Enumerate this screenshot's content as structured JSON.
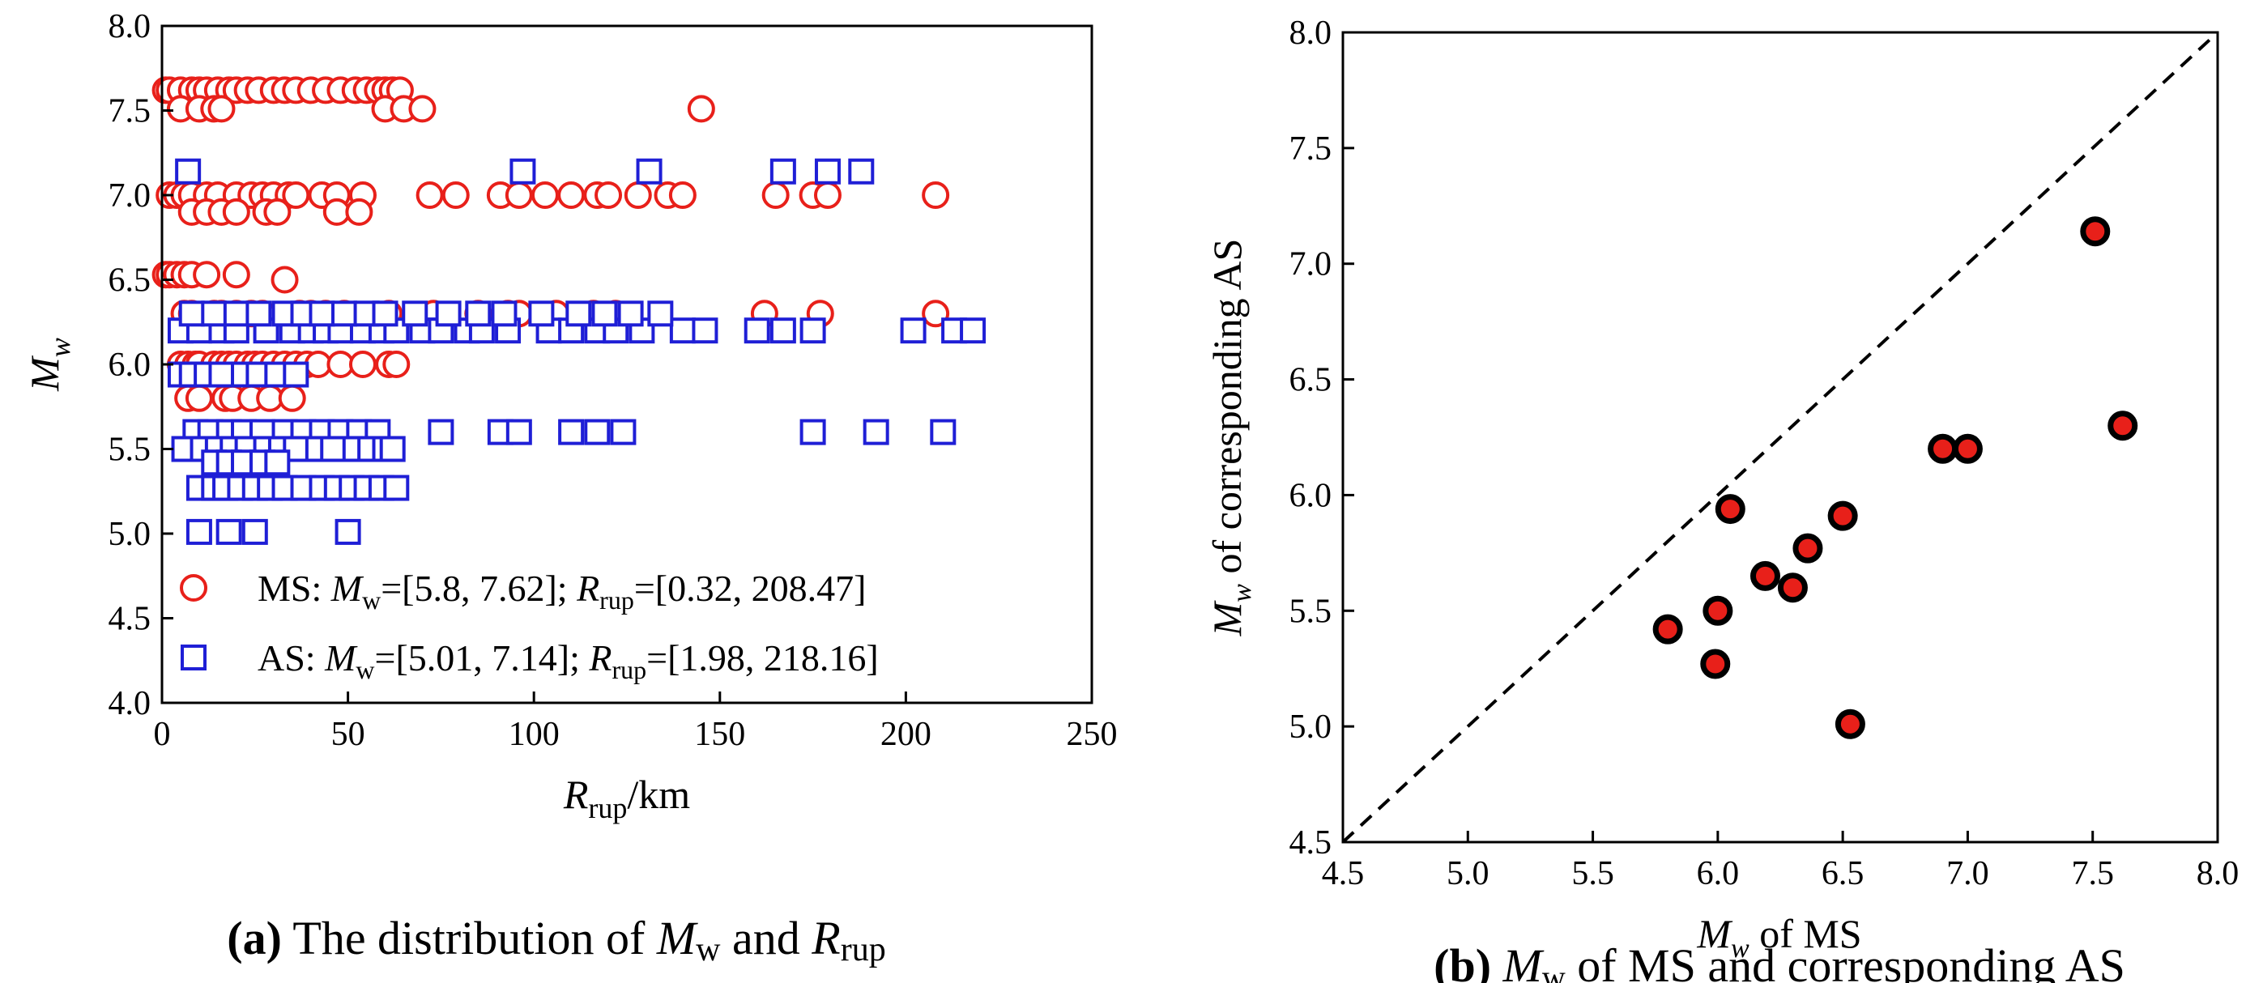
{
  "chart_data": [
    {
      "type": "scatter",
      "panel_id": "a",
      "xlim": [
        0,
        250
      ],
      "ylim": [
        4.0,
        8.0
      ],
      "xticks": [
        "0",
        "50",
        "100",
        "150",
        "200",
        "250"
      ],
      "yticks": [
        "4.0",
        "4.5",
        "5.0",
        "5.5",
        "6.0",
        "6.5",
        "7.0",
        "7.5",
        "8.0"
      ],
      "xlabel": {
        "main": "R",
        "sub": "rup",
        "rest": "/km"
      },
      "ylabel": {
        "main": "M",
        "sub": "w"
      },
      "caption": {
        "tag": "(a)",
        "text1": " The distribution of ",
        "m": "M",
        "msub": "w",
        "and": " and ",
        "r": "R",
        "rsub": "rup"
      },
      "legend": [
        {
          "prefix": "MS: ",
          "m": "M",
          "msub": "w",
          "mrange": "=[5.8, 7.62]; ",
          "r": "R",
          "rsub": "rup",
          "rrange": "=[0.32, 208.47]",
          "color": "#e8201a",
          "marker": "circle"
        },
        {
          "prefix": "AS:  ",
          "m": "M",
          "msub": "w",
          "mrange": "=[5.01, 7.14]; ",
          "r": "R",
          "rsub": "rup",
          "rrange": "=[1.98, 218.16]",
          "color": "#1f1fd6",
          "marker": "square"
        }
      ],
      "series": [
        {
          "name": "MS",
          "color": "#e8201a",
          "marker": "circle",
          "x": [
            1,
            2,
            5,
            8,
            10,
            12,
            15,
            18,
            20,
            23,
            26,
            30,
            33,
            36,
            40,
            44,
            48,
            52,
            55,
            58,
            60,
            62,
            64,
            5,
            10,
            14,
            16,
            60,
            65,
            70,
            145,
            2,
            4,
            6,
            8,
            12,
            15,
            20,
            24,
            27,
            30,
            34,
            36,
            43,
            47,
            54,
            72,
            79,
            91,
            96,
            103,
            110,
            117,
            120,
            128,
            136,
            140,
            165,
            175,
            179,
            208,
            8,
            12,
            16,
            20,
            28,
            31,
            47,
            53,
            1,
            2,
            4,
            6,
            8,
            12,
            20,
            33,
            6,
            8,
            14,
            16,
            20,
            24,
            27,
            37,
            40,
            44,
            49,
            61,
            73,
            85,
            93,
            96,
            106,
            116,
            122,
            162,
            177,
            208,
            5,
            7,
            9,
            10,
            14,
            16,
            18,
            20,
            23,
            25,
            27,
            30,
            33,
            36,
            39,
            42,
            48,
            54,
            61,
            63,
            7,
            10,
            17,
            19,
            24,
            29,
            35
          ],
          "y": [
            7.62,
            7.62,
            7.62,
            7.62,
            7.62,
            7.62,
            7.62,
            7.62,
            7.62,
            7.62,
            7.62,
            7.62,
            7.62,
            7.62,
            7.62,
            7.62,
            7.62,
            7.62,
            7.62,
            7.62,
            7.62,
            7.62,
            7.62,
            7.51,
            7.51,
            7.51,
            7.51,
            7.51,
            7.51,
            7.51,
            7.51,
            7.0,
            7.0,
            7.0,
            7.0,
            7.0,
            7.0,
            7.0,
            7.0,
            7.0,
            7.0,
            7.0,
            7.0,
            7.0,
            7.0,
            7.0,
            7.0,
            7.0,
            7.0,
            7.0,
            7.0,
            7.0,
            7.0,
            7.0,
            7.0,
            7.0,
            7.0,
            7.0,
            7.0,
            7.0,
            7.0,
            6.9,
            6.9,
            6.9,
            6.9,
            6.9,
            6.9,
            6.9,
            6.9,
            6.53,
            6.53,
            6.53,
            6.53,
            6.53,
            6.53,
            6.53,
            6.5,
            6.3,
            6.3,
            6.3,
            6.3,
            6.3,
            6.3,
            6.3,
            6.3,
            6.3,
            6.3,
            6.3,
            6.3,
            6.3,
            6.3,
            6.3,
            6.3,
            6.3,
            6.3,
            6.3,
            6.3,
            6.3,
            6.3,
            6.0,
            6.0,
            6.0,
            6.0,
            6.0,
            6.0,
            6.0,
            6.0,
            6.0,
            6.0,
            6.0,
            6.0,
            6.0,
            6.0,
            6.0,
            6.0,
            6.0,
            6.0,
            6.0,
            6.0,
            5.8,
            5.8,
            5.8,
            5.8,
            5.8,
            5.8,
            5.8
          ]
        },
        {
          "name": "AS",
          "color": "#1f1fd6",
          "marker": "square",
          "x": [
            7,
            97,
            131,
            167,
            179,
            188,
            5,
            10,
            16,
            20,
            28,
            35,
            40,
            44,
            48,
            54,
            59,
            63,
            70,
            75,
            82,
            86,
            93,
            104,
            110,
            117,
            122,
            129,
            140,
            146,
            160,
            167,
            175,
            202,
            213,
            218,
            8,
            14,
            20,
            26,
            33,
            38,
            43,
            49,
            55,
            60,
            68,
            77,
            85,
            92,
            102,
            112,
            119,
            126,
            134,
            5,
            8,
            12,
            16,
            22,
            26,
            31,
            36,
            9,
            13,
            18,
            22,
            27,
            33,
            38,
            43,
            48,
            53,
            58,
            75,
            91,
            96,
            110,
            117,
            124,
            175,
            192,
            210,
            6,
            11,
            15,
            19,
            23,
            28,
            32,
            36,
            42,
            46,
            52,
            56,
            60,
            62,
            14,
            18,
            22,
            27,
            31,
            10,
            14,
            17,
            21,
            25,
            29,
            33,
            38,
            43,
            47,
            51,
            55,
            59,
            63,
            10,
            18,
            25,
            50
          ],
          "y": [
            7.14,
            7.14,
            7.14,
            7.14,
            7.14,
            7.14,
            6.2,
            6.2,
            6.2,
            6.2,
            6.2,
            6.2,
            6.2,
            6.2,
            6.2,
            6.2,
            6.2,
            6.2,
            6.2,
            6.2,
            6.2,
            6.2,
            6.2,
            6.2,
            6.2,
            6.2,
            6.2,
            6.2,
            6.2,
            6.2,
            6.2,
            6.2,
            6.2,
            6.2,
            6.2,
            6.2,
            6.3,
            6.3,
            6.3,
            6.3,
            6.3,
            6.3,
            6.3,
            6.3,
            6.3,
            6.3,
            6.3,
            6.3,
            6.3,
            6.3,
            6.3,
            6.3,
            6.3,
            6.3,
            6.3,
            5.94,
            5.94,
            5.94,
            5.94,
            5.94,
            5.94,
            5.94,
            5.94,
            5.6,
            5.6,
            5.6,
            5.6,
            5.6,
            5.6,
            5.6,
            5.6,
            5.6,
            5.6,
            5.6,
            5.6,
            5.6,
            5.6,
            5.6,
            5.6,
            5.6,
            5.6,
            5.6,
            5.6,
            5.5,
            5.5,
            5.5,
            5.5,
            5.5,
            5.5,
            5.5,
            5.5,
            5.5,
            5.5,
            5.5,
            5.5,
            5.5,
            5.5,
            5.42,
            5.42,
            5.42,
            5.42,
            5.42,
            5.27,
            5.27,
            5.27,
            5.27,
            5.27,
            5.27,
            5.27,
            5.27,
            5.27,
            5.27,
            5.27,
            5.27,
            5.27,
            5.27,
            5.01,
            5.01,
            5.01,
            5.01
          ]
        }
      ]
    },
    {
      "type": "scatter",
      "panel_id": "b",
      "xlim": [
        4.5,
        8.0
      ],
      "ylim": [
        4.5,
        8.0
      ],
      "xticks": [
        "4.5",
        "5.0",
        "5.5",
        "6.0",
        "6.5",
        "7.0",
        "7.5",
        "8.0"
      ],
      "yticks": [
        "4.5",
        "5.0",
        "5.5",
        "6.0",
        "6.5",
        "7.0",
        "7.5",
        "8.0"
      ],
      "xlabel": {
        "main": "M",
        "sub": "w",
        "rest": " of MS"
      },
      "ylabel": {
        "main": "M",
        "sub": "w",
        "rest": " of corresponding AS"
      },
      "caption": {
        "tag": "(b)",
        "m": "M",
        "msub": "w",
        "text": " of MS and corresponding AS"
      },
      "reference_line": {
        "x": [
          4.5,
          8.0
        ],
        "y": [
          4.5,
          8.0
        ],
        "style": "dashed"
      },
      "series": [
        {
          "name": "MS vs AS",
          "color": "#e8201a",
          "marker": "circle-filled",
          "x": [
            5.8,
            5.99,
            6.0,
            6.05,
            6.19,
            6.3,
            6.36,
            6.5,
            6.53,
            6.9,
            7.0,
            7.51,
            7.62
          ],
          "y": [
            5.42,
            5.27,
            5.5,
            5.94,
            5.65,
            5.6,
            5.77,
            5.91,
            5.01,
            6.2,
            6.2,
            7.14,
            6.3
          ]
        }
      ]
    }
  ]
}
